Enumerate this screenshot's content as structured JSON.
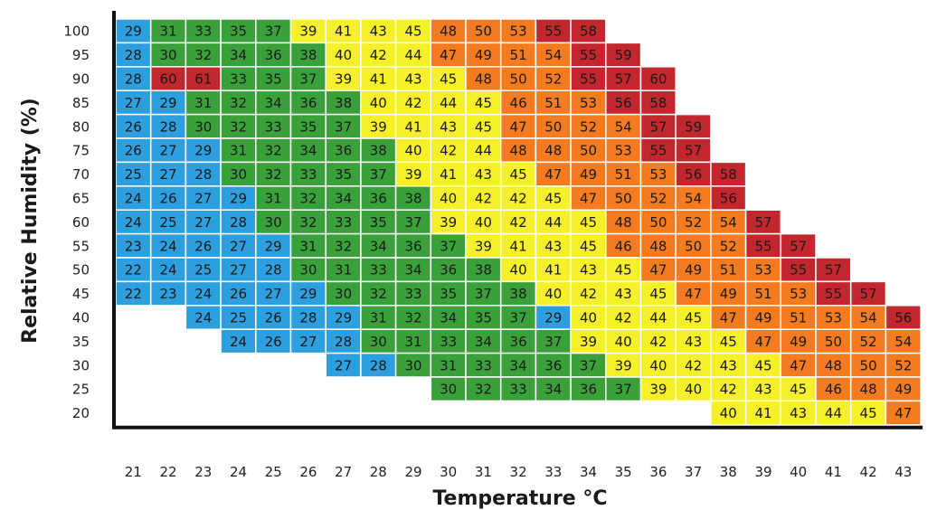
{
  "chart_data": {
    "type": "heatmap",
    "title": "",
    "xlabel": "Temperature °C",
    "ylabel": "Relative Humidity (%)",
    "x": [
      21,
      22,
      23,
      24,
      25,
      26,
      27,
      28,
      29,
      30,
      31,
      32,
      33,
      34,
      35,
      36,
      37,
      38,
      39,
      40,
      41,
      42,
      43
    ],
    "y": [
      100,
      95,
      90,
      85,
      80,
      75,
      70,
      65,
      60,
      55,
      50,
      45,
      40,
      35,
      30,
      25,
      20
    ],
    "rows": [
      {
        "y": 100,
        "start": 21,
        "values": [
          29,
          31,
          33,
          35,
          37,
          39,
          41,
          43,
          45,
          48,
          50,
          53,
          55,
          58
        ]
      },
      {
        "y": 95,
        "start": 21,
        "values": [
          28,
          30,
          32,
          34,
          36,
          38,
          40,
          42,
          44,
          47,
          49,
          51,
          54,
          55,
          59
        ]
      },
      {
        "y": 90,
        "start": 21,
        "values": [
          28,
          60,
          61,
          33,
          35,
          37,
          39,
          41,
          43,
          45,
          48,
          50,
          52,
          55,
          57,
          60
        ]
      },
      {
        "y": 85,
        "start": 21,
        "values": [
          27,
          29,
          31,
          32,
          34,
          36,
          38,
          40,
          42,
          44,
          45,
          46,
          51,
          53,
          56,
          58
        ]
      },
      {
        "y": 80,
        "start": 21,
        "values": [
          26,
          28,
          30,
          32,
          33,
          35,
          37,
          39,
          41,
          43,
          45,
          47,
          50,
          52,
          54,
          57,
          59
        ]
      },
      {
        "y": 75,
        "start": 21,
        "values": [
          26,
          27,
          29,
          31,
          32,
          34,
          36,
          38,
          40,
          42,
          44,
          48,
          48,
          50,
          53,
          55,
          57
        ]
      },
      {
        "y": 70,
        "start": 21,
        "values": [
          25,
          27,
          28,
          30,
          32,
          33,
          35,
          37,
          39,
          41,
          43,
          45,
          47,
          49,
          51,
          53,
          56,
          58
        ]
      },
      {
        "y": 65,
        "start": 21,
        "values": [
          24,
          26,
          27,
          29,
          31,
          32,
          34,
          36,
          38,
          40,
          42,
          42,
          45,
          47,
          50,
          52,
          54,
          56
        ]
      },
      {
        "y": 60,
        "start": 21,
        "values": [
          24,
          25,
          27,
          28,
          30,
          32,
          33,
          35,
          37,
          39,
          40,
          42,
          44,
          45,
          48,
          50,
          52,
          54,
          57
        ]
      },
      {
        "y": 55,
        "start": 21,
        "values": [
          23,
          24,
          26,
          27,
          29,
          31,
          32,
          34,
          36,
          37,
          39,
          41,
          43,
          45,
          46,
          48,
          50,
          52,
          55,
          57
        ]
      },
      {
        "y": 50,
        "start": 21,
        "values": [
          22,
          24,
          25,
          27,
          28,
          30,
          31,
          33,
          34,
          36,
          38,
          40,
          41,
          43,
          45,
          47,
          49,
          51,
          53,
          55,
          57
        ]
      },
      {
        "y": 45,
        "start": 21,
        "values": [
          22,
          23,
          24,
          26,
          27,
          29,
          30,
          32,
          33,
          35,
          37,
          38,
          40,
          42,
          43,
          45,
          47,
          49,
          51,
          53,
          55,
          57
        ]
      },
      {
        "y": 40,
        "start": 23,
        "values": [
          24,
          25,
          26,
          28,
          29,
          31,
          32,
          34,
          35,
          37,
          29,
          40,
          42,
          44,
          45,
          47,
          49,
          51,
          53,
          54,
          56
        ]
      },
      {
        "y": 35,
        "start": 24,
        "values": [
          24,
          26,
          27,
          28,
          30,
          31,
          33,
          34,
          36,
          37,
          39,
          40,
          42,
          43,
          45,
          47,
          49,
          50,
          52,
          54
        ]
      },
      {
        "y": 30,
        "start": 27,
        "values": [
          27,
          28,
          30,
          31,
          33,
          34,
          36,
          37,
          39,
          40,
          42,
          43,
          45,
          47,
          48,
          50,
          52
        ]
      },
      {
        "y": 25,
        "start": 30,
        "values": [
          30,
          32,
          33,
          34,
          36,
          37,
          39,
          40,
          42,
          43,
          45,
          46,
          48,
          49
        ]
      },
      {
        "y": 20,
        "start": 38,
        "values": [
          40,
          41,
          43,
          44,
          45,
          47
        ]
      }
    ],
    "colors": {
      "blue": "#2e9fde",
      "green": "#3aa13a",
      "yellow": "#f5f02a",
      "orange": "#f47b20",
      "red": "#c1272d",
      "grid_line": "#ffffff",
      "axis": "#111111"
    },
    "grid": true,
    "legend": "none"
  }
}
